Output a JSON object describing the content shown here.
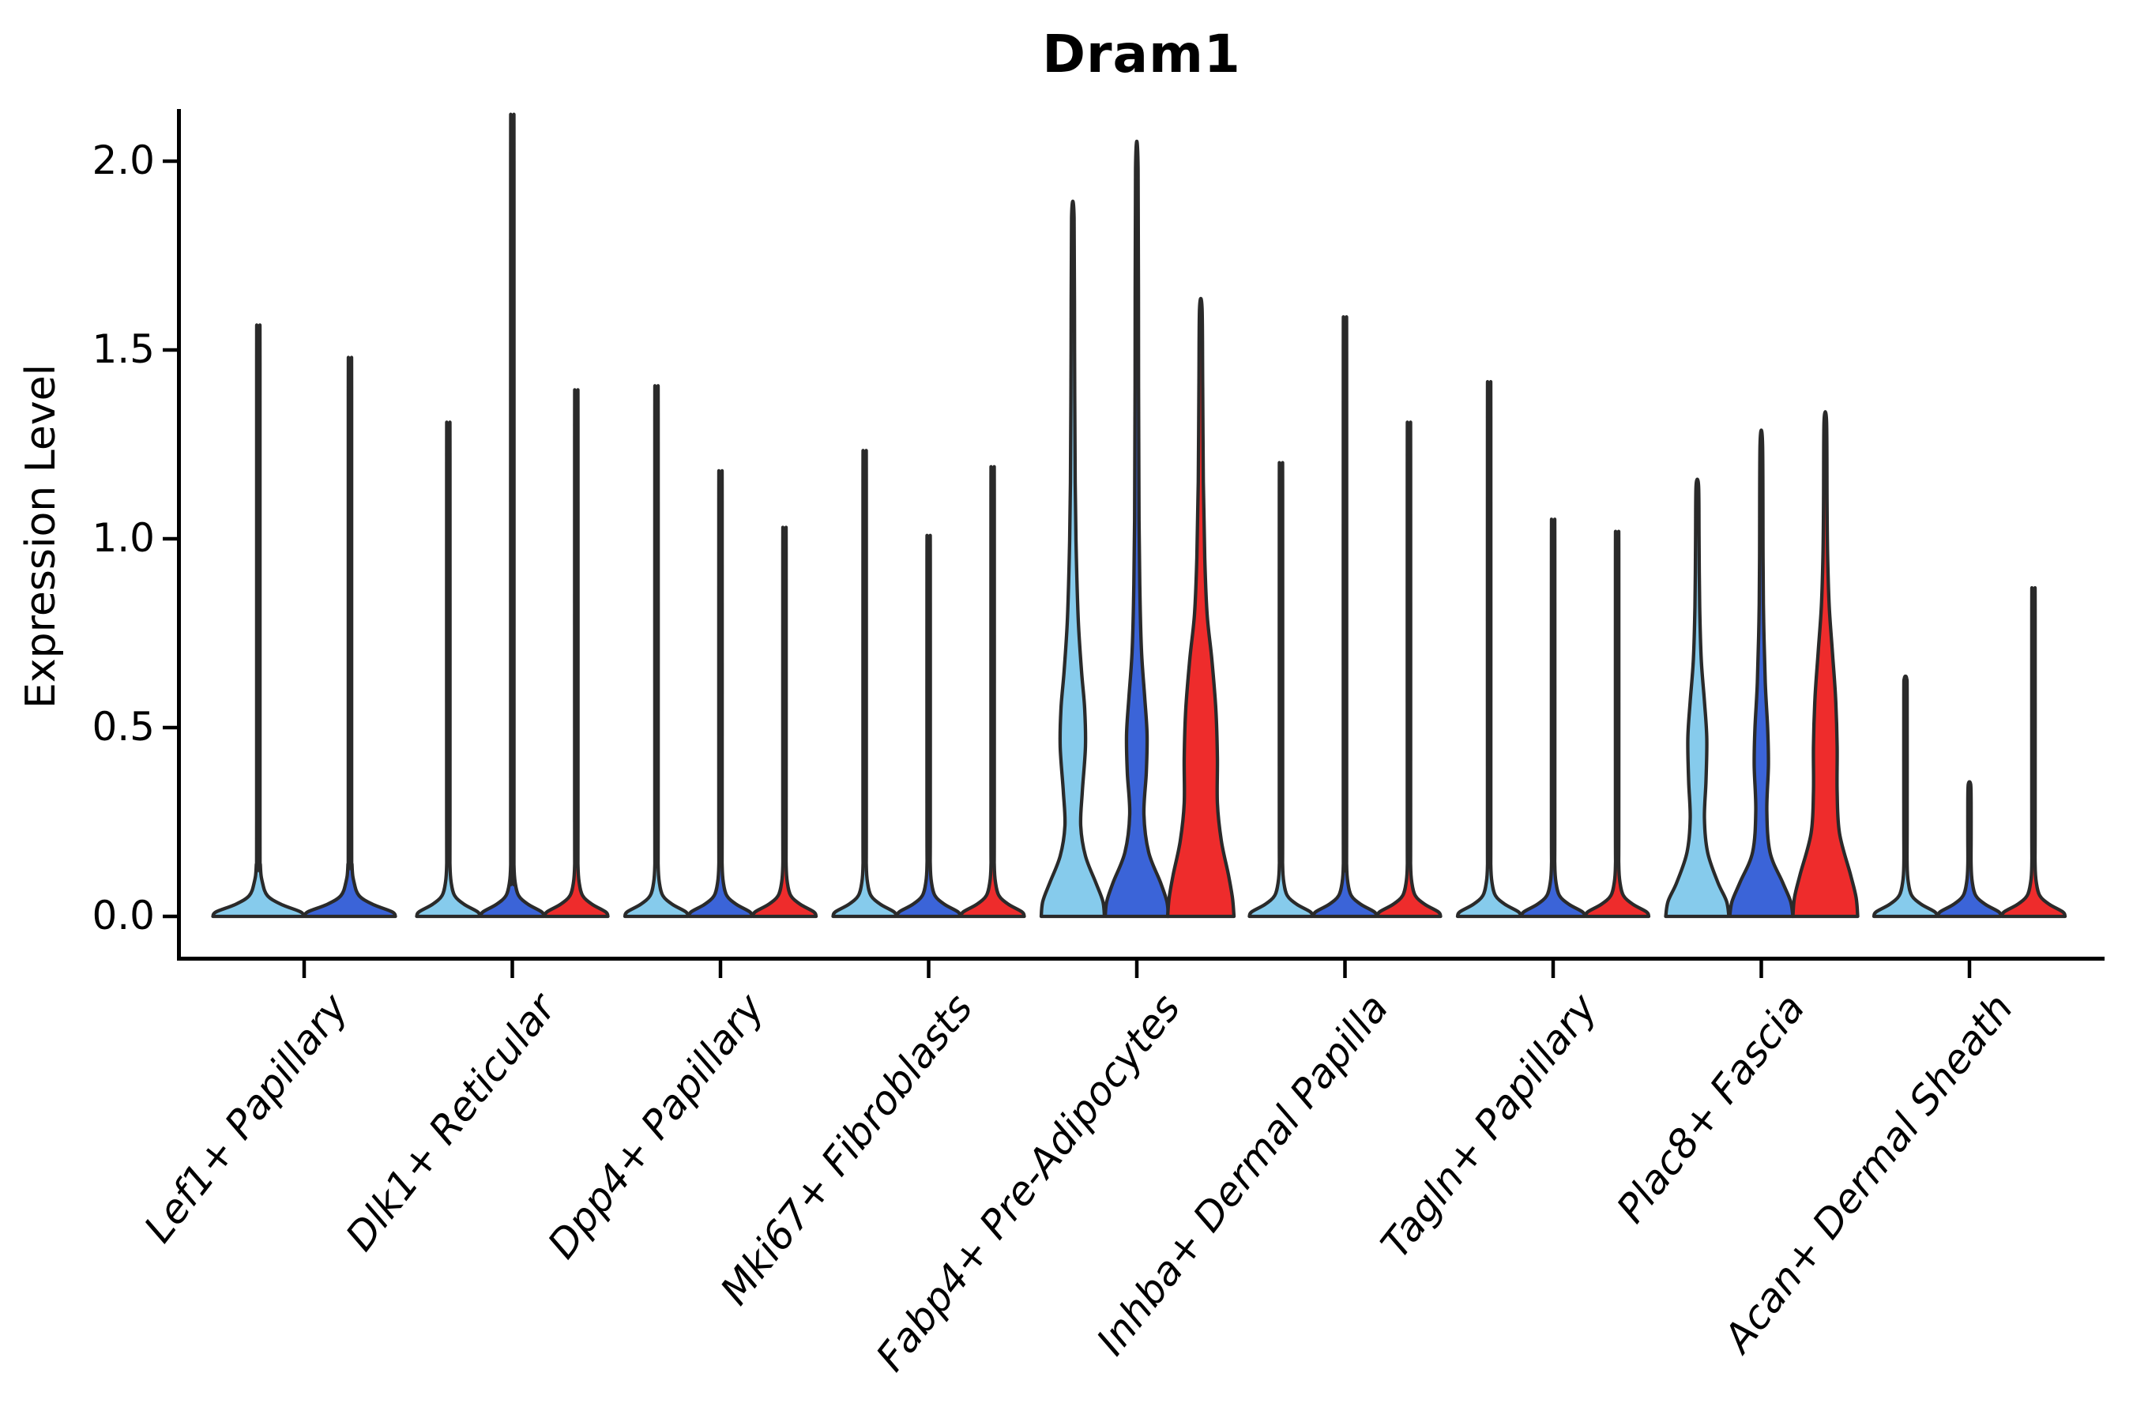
{
  "chart_data": {
    "type": "violin",
    "title": "Dram1",
    "ylabel": "Expression Level",
    "ylim": [
      -0.1,
      2.13
    ],
    "grid": false,
    "legend": "none",
    "violin_stroke": "#2a2a2a",
    "axis_color": "#000000",
    "palette": {
      "light_blue": "#86CBEC",
      "blue": "#3B64D8",
      "red": "#EE2C2C"
    },
    "yticks": [
      {
        "label": "0.0",
        "value": 0.0
      },
      {
        "label": "0.5",
        "value": 0.5
      },
      {
        "label": "1.0",
        "value": 1.0
      },
      {
        "label": "1.5",
        "value": 1.5
      },
      {
        "label": "2.0",
        "value": 2.0
      }
    ],
    "groups": [
      {
        "label": "Lef1+ Papillary",
        "violins": [
          {
            "color_key": "light_blue",
            "max": 1.51,
            "shape": "spike"
          },
          {
            "color_key": "blue",
            "max": 1.43,
            "shape": "spike"
          }
        ]
      },
      {
        "label": "Dlk1+ Reticular",
        "violins": [
          {
            "color_key": "light_blue",
            "max": 1.27,
            "shape": "spike"
          },
          {
            "color_key": "blue",
            "max": 2.03,
            "shape": "spike"
          },
          {
            "color_key": "red",
            "max": 1.35,
            "shape": "spike"
          }
        ]
      },
      {
        "label": "Dpp4+ Papillary",
        "violins": [
          {
            "color_key": "light_blue",
            "max": 1.36,
            "shape": "spike"
          },
          {
            "color_key": "blue",
            "max": 1.15,
            "shape": "spike"
          },
          {
            "color_key": "red",
            "max": 1.01,
            "shape": "spike"
          }
        ]
      },
      {
        "label": "Mki67+ Fibroblasts",
        "violins": [
          {
            "color_key": "light_blue",
            "max": 1.2,
            "shape": "spike"
          },
          {
            "color_key": "blue",
            "max": 0.99,
            "shape": "spike"
          },
          {
            "color_key": "red",
            "max": 1.16,
            "shape": "spike"
          }
        ]
      },
      {
        "label": "Fabp4+ Pre-Adipocytes",
        "violins": [
          {
            "color_key": "light_blue",
            "max": 1.85,
            "shape": "filled",
            "profile": [
              [
                0,
                40
              ],
              [
                0.04,
                38
              ],
              [
                0.09,
                29
              ],
              [
                0.16,
                16
              ],
              [
                0.24,
                10
              ],
              [
                0.33,
                12
              ],
              [
                0.45,
                16
              ],
              [
                0.55,
                15
              ],
              [
                0.65,
                11
              ],
              [
                0.78,
                7
              ],
              [
                0.95,
                4.5
              ],
              [
                1.15,
                3
              ],
              [
                1.5,
                2.2
              ],
              [
                1.85,
                1.6
              ]
            ]
          },
          {
            "color_key": "blue",
            "max": 1.98,
            "shape": "filled",
            "profile": [
              [
                0,
                40
              ],
              [
                0.04,
                38
              ],
              [
                0.09,
                30
              ],
              [
                0.17,
                15
              ],
              [
                0.27,
                9
              ],
              [
                0.38,
                12
              ],
              [
                0.48,
                13
              ],
              [
                0.58,
                10
              ],
              [
                0.7,
                6
              ],
              [
                0.85,
                4
              ],
              [
                1.05,
                2.8
              ],
              [
                1.4,
                2.2
              ],
              [
                1.98,
                1.6
              ]
            ]
          },
          {
            "color_key": "red",
            "max": 1.61,
            "shape": "filled",
            "profile": [
              [
                0,
                42
              ],
              [
                0.05,
                40
              ],
              [
                0.11,
                35
              ],
              [
                0.2,
                26
              ],
              [
                0.3,
                21
              ],
              [
                0.42,
                21
              ],
              [
                0.55,
                19
              ],
              [
                0.68,
                14
              ],
              [
                0.8,
                8
              ],
              [
                0.95,
                5
              ],
              [
                1.15,
                3.2
              ],
              [
                1.4,
                2.4
              ],
              [
                1.61,
                1.6
              ]
            ]
          }
        ]
      },
      {
        "label": "Inhba+ Dermal Papilla",
        "violins": [
          {
            "color_key": "light_blue",
            "max": 1.17,
            "shape": "spike"
          },
          {
            "color_key": "blue",
            "max": 1.53,
            "shape": "spike"
          },
          {
            "color_key": "red",
            "max": 1.27,
            "shape": "spike"
          }
        ]
      },
      {
        "label": "Tagln+ Papillary",
        "violins": [
          {
            "color_key": "light_blue",
            "max": 1.37,
            "shape": "spike"
          },
          {
            "color_key": "blue",
            "max": 1.03,
            "shape": "spike"
          },
          {
            "color_key": "red",
            "max": 1.0,
            "shape": "spike"
          }
        ]
      },
      {
        "label": "Plac8+ Fascia",
        "violins": [
          {
            "color_key": "light_blue",
            "max": 1.14,
            "shape": "filled",
            "profile": [
              [
                0,
                40
              ],
              [
                0.04,
                37
              ],
              [
                0.09,
                26
              ],
              [
                0.17,
                13
              ],
              [
                0.26,
                9
              ],
              [
                0.36,
                11
              ],
              [
                0.47,
                12
              ],
              [
                0.57,
                9
              ],
              [
                0.68,
                5
              ],
              [
                0.82,
                3
              ],
              [
                1.0,
                2.2
              ],
              [
                1.14,
                1.6
              ]
            ]
          },
          {
            "color_key": "blue",
            "max": 1.25,
            "shape": "filled",
            "profile": [
              [
                0,
                40
              ],
              [
                0.04,
                37
              ],
              [
                0.09,
                27
              ],
              [
                0.17,
                11
              ],
              [
                0.28,
                7
              ],
              [
                0.4,
                9
              ],
              [
                0.5,
                8
              ],
              [
                0.62,
                5
              ],
              [
                0.78,
                3
              ],
              [
                0.95,
                2.2
              ],
              [
                1.25,
                1.6
              ]
            ]
          },
          {
            "color_key": "red",
            "max": 1.31,
            "shape": "filled",
            "profile": [
              [
                0,
                41
              ],
              [
                0.05,
                39
              ],
              [
                0.11,
                32
              ],
              [
                0.22,
                18
              ],
              [
                0.33,
                15
              ],
              [
                0.45,
                15
              ],
              [
                0.58,
                13
              ],
              [
                0.7,
                9
              ],
              [
                0.82,
                5
              ],
              [
                0.95,
                3
              ],
              [
                1.1,
                2.2
              ],
              [
                1.31,
                1.6
              ]
            ]
          }
        ]
      },
      {
        "label": "Acan+ Dermal Sheath",
        "violins": [
          {
            "color_key": "light_blue",
            "max": 0.63,
            "shape": "spike"
          },
          {
            "color_key": "blue",
            "max": 0.35,
            "shape": "spike"
          },
          {
            "color_key": "red",
            "max": 0.86,
            "shape": "spike"
          }
        ]
      }
    ]
  }
}
